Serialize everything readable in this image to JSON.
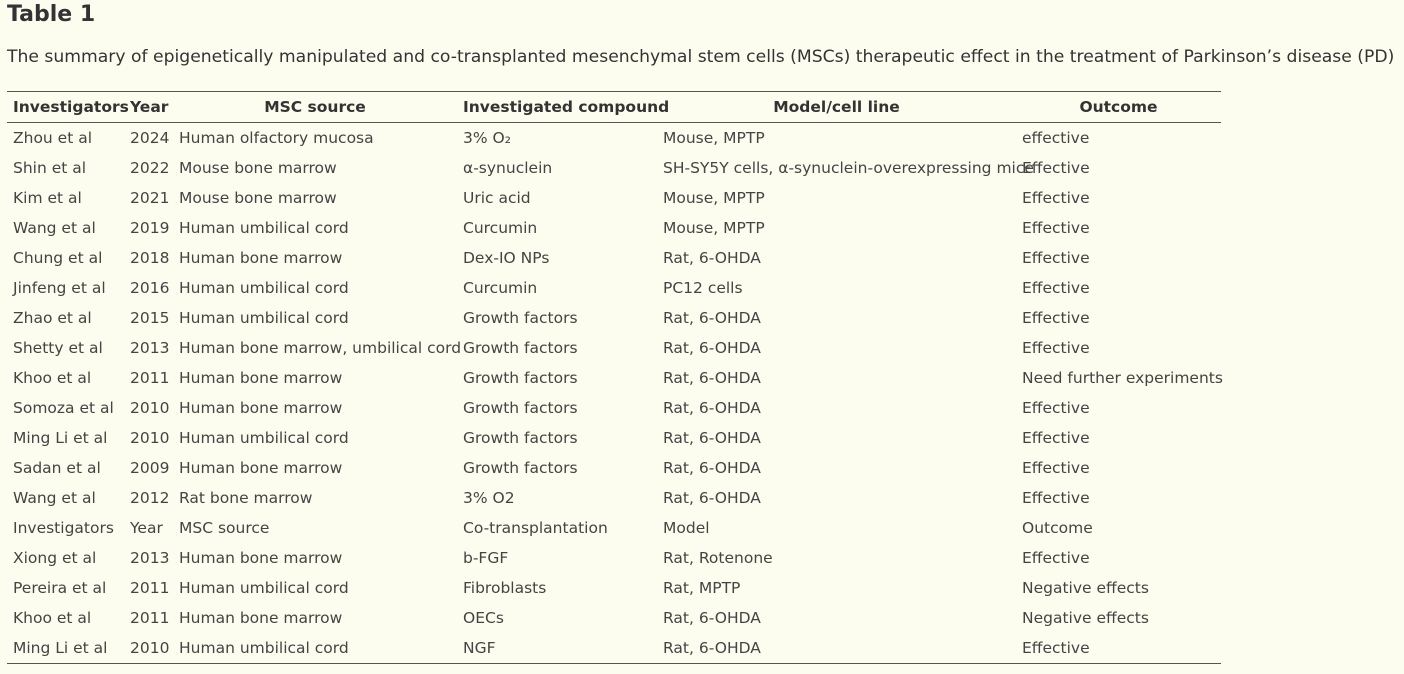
{
  "header": {
    "title": "Table 1",
    "caption": "The summary of epigenetically manipulated and co-transplanted mesenchymal stem cells (MSCs) therapeutic effect in the treatment of Parkinson’s disease (PD)"
  },
  "table": {
    "columns": [
      "Investigators",
      "Year",
      "MSC source",
      "Investigated compound",
      "Model/cell line",
      "Outcome"
    ],
    "rows": [
      [
        "Zhou et al",
        "2024",
        "Human olfactory mucosa",
        "3% O₂",
        "Mouse, MPTP",
        "effective"
      ],
      [
        "Shin et al",
        "2022",
        "Mouse bone marrow",
        "α-synuclein",
        "SH-SY5Y cells, α-synuclein-overexpressing mice",
        "Effective"
      ],
      [
        "Kim et al",
        "2021",
        "Mouse bone marrow",
        "Uric acid",
        "Mouse, MPTP",
        "Effective"
      ],
      [
        "Wang et al",
        "2019",
        "Human umbilical cord",
        "Curcumin",
        "Mouse, MPTP",
        "Effective"
      ],
      [
        "Chung et al",
        "2018",
        "Human bone marrow",
        "Dex-IO NPs",
        "Rat, 6-OHDA",
        "Effective"
      ],
      [
        "Jinfeng et al",
        "2016",
        "Human umbilical cord",
        "Curcumin",
        "PC12 cells",
        "Effective"
      ],
      [
        "Zhao et al",
        "2015",
        "Human umbilical cord",
        "Growth factors",
        "Rat, 6-OHDA",
        "Effective"
      ],
      [
        "Shetty et al",
        "2013",
        "Human bone marrow, umbilical cord",
        "Growth factors",
        "Rat, 6-OHDA",
        "Effective"
      ],
      [
        "Khoo et al",
        "2011",
        "Human bone marrow",
        "Growth factors",
        "Rat, 6-OHDA",
        "Need further experiments"
      ],
      [
        "Somoza et al",
        "2010",
        "Human bone marrow",
        "Growth factors",
        "Rat, 6-OHDA",
        "Effective"
      ],
      [
        "Ming Li et al",
        "2010",
        "Human umbilical cord",
        "Growth factors",
        "Rat, 6-OHDA",
        "Effective"
      ],
      [
        "Sadan et al",
        "2009",
        "Human bone marrow",
        "Growth factors",
        "Rat, 6-OHDA",
        "Effective"
      ],
      [
        "Wang et al",
        "2012",
        "Rat bone marrow",
        "3% O2",
        "Rat, 6-OHDA",
        "Effective"
      ],
      [
        "Investigators",
        "Year",
        "MSC source",
        "Co-transplantation",
        "Model",
        "Outcome"
      ],
      [
        "Xiong et al",
        "2013",
        "Human bone marrow",
        "b-FGF",
        "Rat, Rotenone",
        "Effective"
      ],
      [
        "Pereira et al",
        "2011",
        "Human umbilical cord",
        "Fibroblasts",
        "Rat, MPTP",
        "Negative effects"
      ],
      [
        "Khoo et al",
        "2011",
        "Human bone marrow",
        "OECs",
        "Rat, 6-OHDA",
        "Negative effects"
      ],
      [
        "Ming Li et al",
        "2010",
        "Human umbilical cord",
        "NGF",
        "Rat, 6-OHDA",
        "Effective"
      ]
    ]
  }
}
